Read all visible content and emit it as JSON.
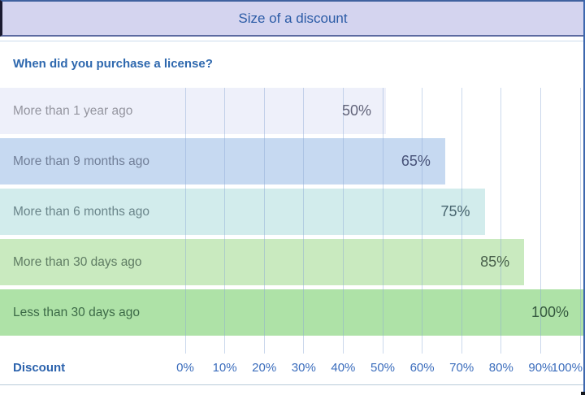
{
  "header": {
    "title": "Size of a discount"
  },
  "panel": {
    "question": "When did you purchase a license?"
  },
  "axis": {
    "title": "Discount",
    "ticks": [
      "0%",
      "10%",
      "20%",
      "30%",
      "40%",
      "50%",
      "60%",
      "70%",
      "80%",
      "90%",
      "100%"
    ]
  },
  "colors": {
    "title_bar_bg": "#d4d4ef",
    "title_text": "#2b5ba6",
    "question_text": "#2e68ae",
    "axis_text": "#3a6cbc",
    "frame_border": "#3e68ae",
    "gridline": "#8ca8d4"
  },
  "chart_data": {
    "type": "bar",
    "orientation": "horizontal",
    "title": "Size of a discount",
    "subtitle": "When did you purchase a license?",
    "categories": [
      "More than 1 year ago",
      "More than 9 months ago",
      "More than 6 months ago",
      "More than 30 days ago",
      "Less than 30 days ago"
    ],
    "values": [
      50,
      65,
      75,
      85,
      100
    ],
    "value_labels": [
      "50%",
      "65%",
      "75%",
      "85%",
      "100%"
    ],
    "xlabel": "Discount",
    "ylabel": "",
    "xlim": [
      0,
      100
    ],
    "x_tick_labels": [
      "0%",
      "10%",
      "20%",
      "30%",
      "40%",
      "50%",
      "60%",
      "70%",
      "80%",
      "90%",
      "100%"
    ],
    "grid": true,
    "legend": false,
    "bar_colors": [
      "#eef0fa",
      "#c6d9f1",
      "#d2ecec",
      "#c9eabf",
      "#aee2a7"
    ],
    "category_label_colors": [
      "#94959f",
      "#707e97",
      "#6a858a",
      "#5f7c63",
      "#3c6a47"
    ],
    "value_label_colors": [
      "#62647a",
      "#485379",
      "#47646e",
      "#48604b",
      "#35593f"
    ]
  }
}
